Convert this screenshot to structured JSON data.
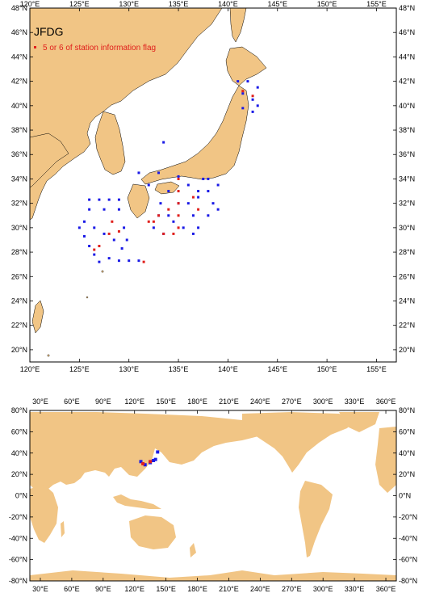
{
  "colors": {
    "land": "#f1c585",
    "ocean": "#ffffff",
    "station": "#1a1ae6",
    "flagged": "#e0201c",
    "frame": "#000000"
  },
  "top_map": {
    "legend": {
      "title": "JFDG",
      "entry": "5 or 6 of station information flag"
    },
    "lon_labels": [
      "120°E",
      "125°E",
      "130°E",
      "135°E",
      "140°E",
      "145°E",
      "150°E",
      "155°E"
    ],
    "lat_labels_left": [
      "48°N",
      "46°N",
      "44°N",
      "42°N",
      "40°N",
      "38°N",
      "36°N",
      "34°N",
      "32°N",
      "30°N",
      "28°N",
      "26°N",
      "24°N",
      "22°N",
      "20°N"
    ],
    "lat_labels_right": [
      "48°N",
      "46°N",
      "44°N",
      "42°N",
      "40°N",
      "38°N",
      "36°N",
      "34°N",
      "32°N",
      "30°N",
      "28°N",
      "26°N",
      "24°N",
      "22°N",
      "20°N"
    ]
  },
  "bottom_map": {
    "lon_labels": [
      "30°E",
      "60°E",
      "90°E",
      "120°E",
      "150°E",
      "180°E",
      "210°E",
      "240°E",
      "270°E",
      "300°E",
      "330°E",
      "360°E"
    ],
    "lat_labels_left": [
      "80°N",
      "60°N",
      "40°N",
      "20°N",
      "0°N",
      "-20°N",
      "-40°N",
      "-60°N",
      "-80°N"
    ],
    "lat_labels_right": [
      "80°N",
      "60°N",
      "40°N",
      "20°N",
      "0°N",
      "-20°N",
      "-40°N",
      "-60°N",
      "-80°N"
    ]
  },
  "chart_data": [
    {
      "type": "scatter",
      "title": "JFDG",
      "xlim": [
        120,
        157
      ],
      "ylim": [
        19,
        48
      ],
      "series": [
        {
          "name": "",
          "color": "#1a1ae6",
          "points": [
            [
              126,
              32.3
            ],
            [
              127,
              32.3
            ],
            [
              128,
              32.3
            ],
            [
              129,
              32.3
            ],
            [
              126,
              31.5
            ],
            [
              127.5,
              31.5
            ],
            [
              129,
              31.5
            ],
            [
              125.5,
              30.5
            ],
            [
              126.5,
              30
            ],
            [
              127.5,
              29.5
            ],
            [
              128.5,
              29
            ],
            [
              125,
              30
            ],
            [
              125.5,
              29.3
            ],
            [
              126,
              28.5
            ],
            [
              126.5,
              27.8
            ],
            [
              127,
              27.2
            ],
            [
              128,
              27.5
            ],
            [
              129,
              27.3
            ],
            [
              130,
              27.3
            ],
            [
              131,
              27.3
            ],
            [
              129.5,
              30
            ],
            [
              129.8,
              29
            ],
            [
              129.3,
              28.3
            ],
            [
              133.2,
              32
            ],
            [
              134,
              31
            ],
            [
              135.5,
              30
            ],
            [
              136.5,
              31
            ],
            [
              137,
              32.5
            ],
            [
              137.5,
              34
            ],
            [
              138,
              33
            ],
            [
              138.5,
              32
            ],
            [
              139,
              33.5
            ],
            [
              136,
              33.5
            ],
            [
              135,
              34.2
            ],
            [
              134,
              33
            ],
            [
              133,
              31
            ],
            [
              132.5,
              30
            ],
            [
              133.5,
              29.5
            ],
            [
              136.5,
              29.5
            ],
            [
              137,
              30
            ],
            [
              138,
              31
            ],
            [
              139,
              31.5
            ],
            [
              138,
              34
            ],
            [
              137,
              33
            ],
            [
              136,
              32
            ],
            [
              135,
              32
            ],
            [
              134.5,
              30.5
            ],
            [
              133,
              34.5
            ],
            [
              132,
              33.5
            ],
            [
              131,
              34.5
            ],
            [
              133.5,
              37
            ],
            [
              141,
              42
            ],
            [
              142,
              42
            ],
            [
              143,
              41.5
            ],
            [
              141.5,
              41
            ],
            [
              142.5,
              40.5
            ],
            [
              143,
              40
            ],
            [
              141.5,
              39.8
            ],
            [
              142.5,
              39.5
            ]
          ]
        },
        {
          "name": "5 or 6 of station information flag",
          "color": "#e0201c",
          "points": [
            [
              135,
              34
            ],
            [
              135,
              33
            ],
            [
              135,
              32
            ],
            [
              135,
              31
            ],
            [
              135,
              30
            ],
            [
              134.5,
              29.5
            ],
            [
              134,
              31.5
            ],
            [
              133,
              31
            ],
            [
              132.5,
              30.5
            ],
            [
              132,
              30.5
            ],
            [
              133.5,
              29.5
            ],
            [
              136.5,
              32.5
            ],
            [
              137,
              31.5
            ],
            [
              128.3,
              30.5
            ],
            [
              128,
              29.5
            ],
            [
              127,
              28.5
            ],
            [
              126.5,
              28.2
            ],
            [
              129,
              29.7
            ],
            [
              131.5,
              27.2
            ],
            [
              141.5,
              41.2
            ],
            [
              142.5,
              40.8
            ]
          ]
        }
      ]
    },
    {
      "type": "scatter",
      "xlim": [
        20,
        370
      ],
      "ylim": [
        -80,
        80
      ],
      "series": [
        {
          "name": "",
          "color": "#1a1ae6",
          "points": [
            [
              126,
              32
            ],
            [
              130,
              29
            ],
            [
              135,
              31
            ],
            [
              138,
              33
            ],
            [
              140,
              34
            ],
            [
              142,
              41
            ]
          ]
        },
        {
          "name": "5 or 6 of station information flag",
          "color": "#e0201c",
          "points": [
            [
              128,
              30
            ],
            [
              135,
              32
            ]
          ]
        }
      ]
    }
  ]
}
